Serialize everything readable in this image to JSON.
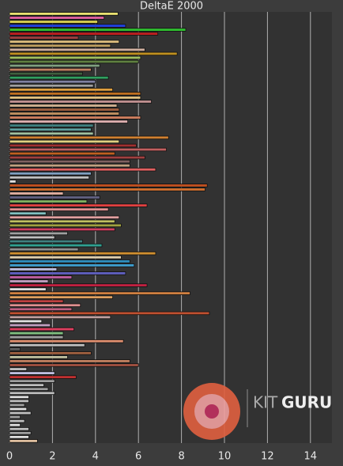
{
  "chart_data": {
    "type": "barh",
    "title": "DeltaE 2000",
    "watermark": [
      "KIT",
      "GURU"
    ],
    "values": [
      5.05,
      4.4,
      4.1,
      5.4,
      8.2,
      6.9,
      3.2,
      5.1,
      4.7,
      6.3,
      7.8,
      6.1,
      6.0,
      4.2,
      3.8,
      3.4,
      4.6,
      4.0,
      3.9,
      4.8,
      6.1,
      6.1,
      6.6,
      5.0,
      5.1,
      5.1,
      6.1,
      5.5,
      3.9,
      3.8,
      3.9,
      7.4,
      5.1,
      5.9,
      7.3,
      4.9,
      6.3,
      5.6,
      5.6,
      6.8,
      3.8,
      3.7,
      0.3,
      9.2,
      9.1,
      2.5,
      4.2,
      3.6,
      6.4,
      4.6,
      1.7,
      5.1,
      4.9,
      5.2,
      4.9,
      2.7,
      2.1,
      3.4,
      4.3,
      3.2,
      6.8,
      5.2,
      5.6,
      5.8,
      2.2,
      5.4,
      2.9,
      1.8,
      6.4,
      1.7,
      8.4,
      4.8,
      2.5,
      3.3,
      2.9,
      9.3,
      4.7,
      1.5,
      1.9,
      3.0,
      2.5,
      2.5,
      5.3,
      3.5,
      0.5,
      3.8,
      2.7,
      5.6,
      6.0,
      0.8,
      2.1,
      3.1,
      2.1,
      1.6,
      1.8,
      2.1,
      0.9,
      0.9,
      0.7,
      0.8,
      1.0,
      0.5,
      0.7,
      0.5,
      0.9,
      1.0,
      0.9,
      1.3
    ],
    "colors": [
      "#e8e070",
      "#e060a0",
      "#d8d050",
      "#2040e0",
      "#30c030",
      "#c02020",
      "#a04040",
      "#e0c080",
      "#c0a060",
      "#d0b0a0",
      "#c09020",
      "#a0c060",
      "#608040",
      "#80a080",
      "#c08060",
      "#406040",
      "#30a060",
      "#8080a0",
      "#a0a0a0",
      "#e0a040",
      "#c07020",
      "#e0c080",
      "#c09090",
      "#d0b090",
      "#a06040",
      "#c09060",
      "#d08060",
      "#e0b0b0",
      "#408080",
      "#60a0a0",
      "#a0c0a0",
      "#d08030",
      "#e0d080",
      "#a03030",
      "#c06060",
      "#c06020",
      "#a04040",
      "#806060",
      "#c0a080",
      "#e06060",
      "#80a0c0",
      "#c0c0c0",
      "#e0e0e0",
      "#c05020",
      "#d07030",
      "#e0b0a0",
      "#606080",
      "#80b060",
      "#e04040",
      "#e09090",
      "#80c0c0",
      "#e0a0a0",
      "#c0c060",
      "#a0a040",
      "#d04060",
      "#a0a0a0",
      "#c0c0c0",
      "#408080",
      "#30a090",
      "#909090",
      "#d09030",
      "#e0d0b0",
      "#3090c0",
      "#40a0d0",
      "#c0c0e0",
      "#6060c0",
      "#c060a0",
      "#c0a0c0",
      "#c02040",
      "#e0e0e0",
      "#d08040",
      "#e0a060",
      "#c04040",
      "#e09090",
      "#c06080",
      "#c05030",
      "#c0a0a0",
      "#e0e0e0",
      "#c0a0c0",
      "#e04060",
      "#80c080",
      "#a0a0a0",
      "#e09070",
      "#c0c0c0",
      "#606060",
      "#a06040",
      "#c0c0a0",
      "#c08060",
      "#a05040",
      "#c0c0c0",
      "#c0c0e0",
      "#c03030",
      "#a0a0a0",
      "#c0c0c0",
      "#a0a0a0",
      "#c0c0c0",
      "#e0e0e0",
      "#c0c0c0",
      "#a0a0a0",
      "#e0e0e0",
      "#c0c0c0",
      "#a0a0a0",
      "#c0c0c0",
      "#e0e0e0",
      "#c0c0c0",
      "#a0a0a0",
      "#e0e0e0",
      "#e0c0a0"
    ],
    "xlim": [
      0,
      15
    ],
    "xticks": [
      0,
      2,
      4,
      6,
      8,
      10,
      12,
      14
    ],
    "grid": true
  }
}
